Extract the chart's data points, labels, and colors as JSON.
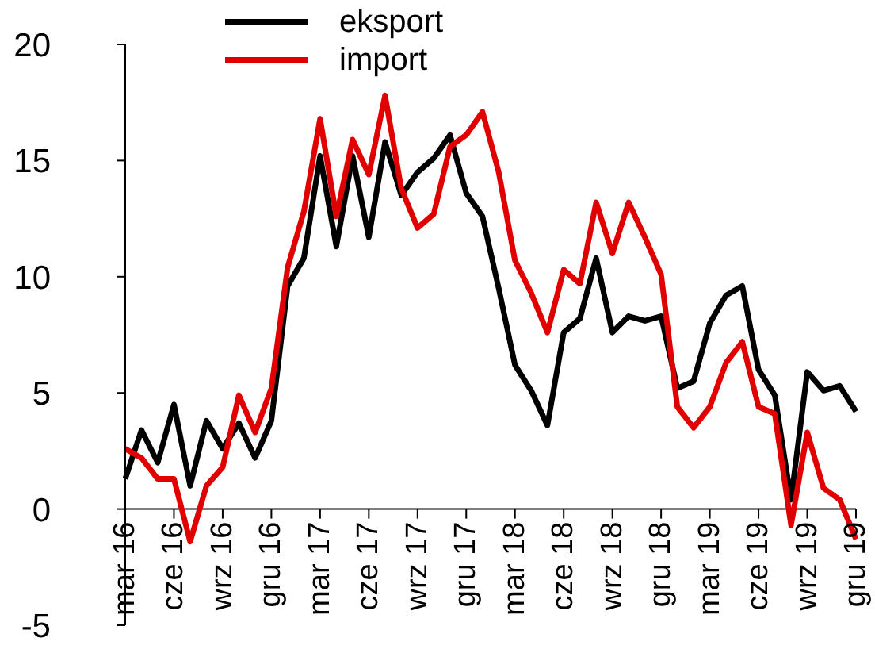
{
  "chart_data": {
    "type": "line",
    "categories": [
      "mar 16",
      null,
      null,
      "cze 16",
      null,
      null,
      "wrz 16",
      null,
      null,
      "gru 16",
      null,
      null,
      "mar 17",
      null,
      null,
      "cze 17",
      null,
      null,
      "wrz 17",
      null,
      null,
      "gru 17",
      null,
      null,
      "mar 18",
      null,
      null,
      "cze 18",
      null,
      null,
      "wrz 18",
      null,
      null,
      "gru 18",
      null,
      null,
      "mar 19",
      null,
      null,
      "cze 19",
      null,
      null,
      "wrz 19",
      null,
      null,
      "gru 19"
    ],
    "series": [
      {
        "name": "eksport",
        "color": "#000000",
        "values": [
          1.3,
          3.4,
          2.0,
          4.5,
          1.0,
          3.8,
          2.6,
          3.7,
          2.2,
          3.8,
          9.6,
          10.8,
          15.2,
          11.3,
          15.2,
          11.7,
          15.8,
          13.5,
          14.5,
          15.1,
          16.1,
          13.6,
          12.6,
          9.5,
          6.2,
          5.1,
          3.6,
          7.6,
          8.2,
          10.8,
          7.6,
          8.3,
          8.1,
          8.3,
          5.2,
          5.5,
          8.0,
          9.2,
          9.6,
          6.0,
          4.9,
          0.4,
          5.9,
          5.1,
          5.3,
          4.2
        ]
      },
      {
        "name": "import",
        "color": "#e00000",
        "values": [
          2.6,
          2.2,
          1.3,
          1.3,
          -1.4,
          1.0,
          1.8,
          4.9,
          3.3,
          5.2,
          10.4,
          12.8,
          16.8,
          12.6,
          15.9,
          14.4,
          17.8,
          13.8,
          12.1,
          12.7,
          15.6,
          16.1,
          17.1,
          14.5,
          10.7,
          9.3,
          7.6,
          10.3,
          9.7,
          13.2,
          11.0,
          13.2,
          11.7,
          10.1,
          4.4,
          3.5,
          4.4,
          6.3,
          7.2,
          4.4,
          4.1,
          -0.7,
          3.3,
          0.9,
          0.4,
          -1.3
        ]
      }
    ],
    "ylim": [
      -5,
      20
    ],
    "yticks": [
      -5,
      0,
      5,
      10,
      15,
      20
    ],
    "grid": false,
    "legend": "top",
    "marker": "none",
    "line_style": "solid"
  }
}
